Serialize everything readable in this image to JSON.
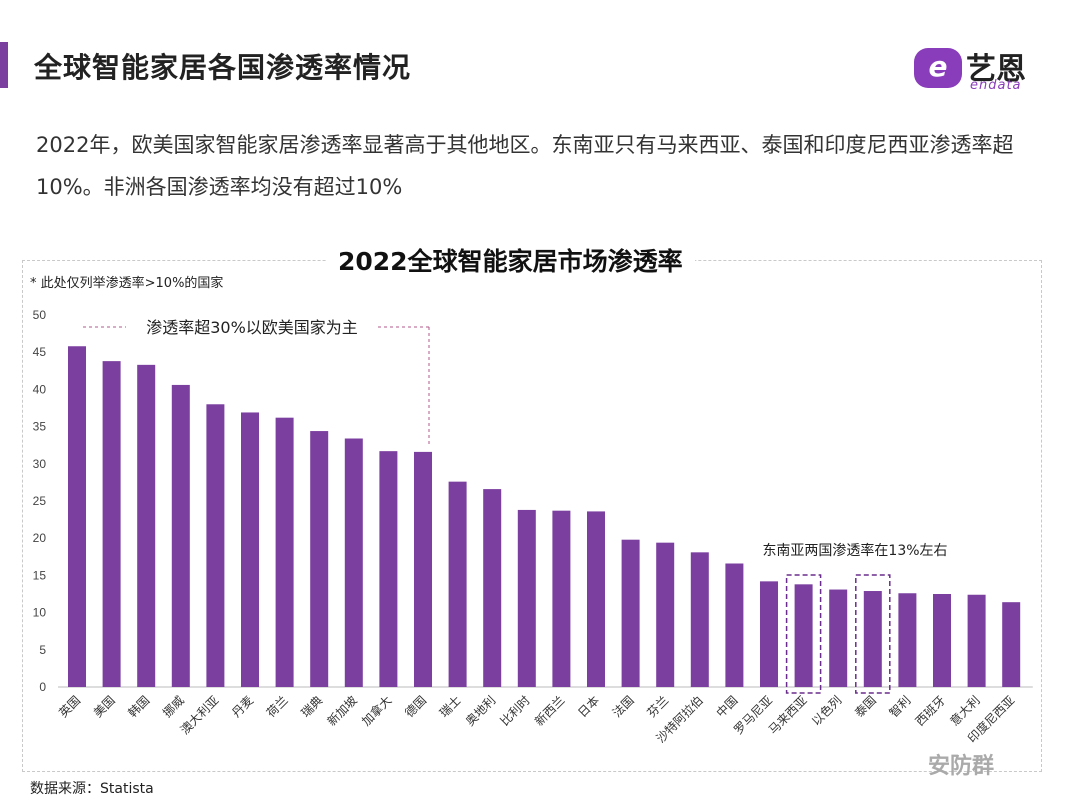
{
  "header": {
    "title": "全球智能家居各国渗透率情况",
    "logo_cn": "艺恩",
    "logo_en": "endata",
    "logo_mark": "e"
  },
  "summary": "2022年，欧美国家智能家居渗透率显著高于其他地区。东南亚只有马来西亚、泰国和印度尼西亚渗透率超10%。非洲各国渗透率均没有超过10%",
  "chart_note": "* 此处仅列举渗透率>10%的国家",
  "source": "数据来源：Statista",
  "watermark": "安防群",
  "colors": {
    "bar": "#7b3fa0",
    "accent": "#7b3fa0",
    "highlight_box": "#6a2d8c",
    "bracket": "#b05a8a"
  },
  "chart_data": {
    "type": "bar",
    "title": "2022全球智能家居市场渗透率",
    "xlabel": "",
    "ylabel": "",
    "ylim": [
      0,
      50
    ],
    "yticks": [
      0,
      5,
      10,
      15,
      20,
      25,
      30,
      35,
      40,
      45,
      50
    ],
    "grid": false,
    "categories": [
      "英国",
      "美国",
      "韩国",
      "挪威",
      "澳大利亚",
      "丹麦",
      "荷兰",
      "瑞典",
      "新加坡",
      "加拿大",
      "德国",
      "瑞士",
      "奥地利",
      "比利时",
      "新西兰",
      "日本",
      "法国",
      "芬兰",
      "沙特阿拉伯",
      "中国",
      "罗马尼亚",
      "马来西亚",
      "以色列",
      "泰国",
      "智利",
      "西班牙",
      "意大利",
      "印度尼西亚"
    ],
    "values": [
      45.8,
      43.8,
      43.3,
      40.6,
      38.0,
      36.9,
      36.2,
      34.4,
      33.4,
      31.7,
      31.6,
      27.6,
      26.6,
      23.8,
      23.7,
      23.6,
      19.8,
      19.4,
      18.1,
      16.6,
      14.2,
      13.8,
      13.1,
      12.9,
      12.6,
      12.5,
      12.4,
      11.4
    ],
    "annotations": [
      {
        "text": "渗透率超30%以欧美国家为主",
        "from_category": "英国",
        "to_category": "德国"
      },
      {
        "text": "东南亚两国渗透率在13%左右",
        "highlight_categories": [
          "马来西亚",
          "泰国"
        ]
      }
    ]
  }
}
